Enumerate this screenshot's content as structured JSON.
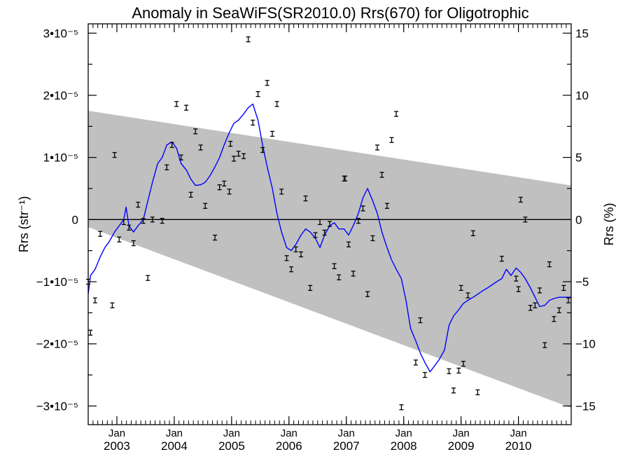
{
  "chart_data": {
    "type": "line",
    "title": "Anomaly in SeaWiFS(SR2010.0) Rrs(670) for Oligotrophic",
    "ylabel_left": "Rrs (str⁻¹)",
    "ylabel_right": "Rrs (%)",
    "xlim": [
      2002.5,
      2010.92
    ],
    "ylim": [
      -3.3e-05,
      3.15e-05
    ],
    "y2lim": [
      -16.5,
      15.75
    ],
    "grid": false,
    "y_ticks": [
      {
        "value": 3e-05,
        "label": "3•10⁻⁵"
      },
      {
        "value": 2e-05,
        "label": "2•10⁻⁵"
      },
      {
        "value": 1e-05,
        "label": "1•10⁻⁵"
      },
      {
        "value": 0,
        "label": "0"
      },
      {
        "value": -1e-05,
        "label": "−1•10⁻⁵"
      },
      {
        "value": -2e-05,
        "label": "−2•10⁻⁵"
      },
      {
        "value": -3e-05,
        "label": "−3•10⁻⁵"
      }
    ],
    "y2_ticks": [
      15,
      10,
      5,
      0,
      -5,
      -10,
      -15
    ],
    "x_ticks": [
      {
        "value": 2003,
        "top": "Jan",
        "bottom": "2003"
      },
      {
        "value": 2004,
        "top": "Jan",
        "bottom": "2004"
      },
      {
        "value": 2005,
        "top": "Jan",
        "bottom": "2005"
      },
      {
        "value": 2006,
        "top": "Jan",
        "bottom": "2006"
      },
      {
        "value": 2007,
        "top": "Jan",
        "bottom": "2007"
      },
      {
        "value": 2008,
        "top": "Jan",
        "bottom": "2008"
      },
      {
        "value": 2009,
        "top": "Jan",
        "bottom": "2009"
      },
      {
        "value": 2010,
        "top": "Jan",
        "bottom": "2010"
      }
    ],
    "uncertainty_band": {
      "color": "#c0c0c0",
      "x": [
        2002.5,
        2010.92
      ],
      "upper": [
        1.75e-05,
        5.5e-06
      ],
      "lower": [
        -1.2e-06,
        -3.03e-05
      ]
    },
    "zero_line": 0,
    "series": [
      {
        "kind": "points",
        "color": "#000000",
        "x": [
          2002.5,
          2002.54,
          2002.62,
          2002.71,
          2002.92,
          2002.96,
          2003.04,
          2003.12,
          2003.21,
          2003.29,
          2003.37,
          2003.46,
          2003.54,
          2003.62,
          2003.79,
          2003.87,
          2003.96,
          2004.04,
          2004.12,
          2004.21,
          2004.29,
          2004.37,
          2004.46,
          2004.54,
          2004.71,
          2004.79,
          2004.87,
          2004.96,
          2004.98,
          2005.04,
          2005.12,
          2005.21,
          2005.29,
          2005.37,
          2005.46,
          2005.54,
          2005.62,
          2005.71,
          2005.79,
          2005.87,
          2005.96,
          2006.04,
          2006.12,
          2006.21,
          2006.29,
          2006.37,
          2006.46,
          2006.54,
          2006.62,
          2006.71,
          2006.79,
          2006.87,
          2006.96,
          2006.98,
          2007.04,
          2007.12,
          2007.21,
          2007.29,
          2007.37,
          2007.46,
          2007.54,
          2007.62,
          2007.71,
          2007.79,
          2007.87,
          2007.96,
          2008.21,
          2008.29,
          2008.37,
          2008.79,
          2008.87,
          2008.96,
          2009.0,
          2009.04,
          2009.12,
          2009.21,
          2009.29,
          2009.71,
          2009.96,
          2010.0,
          2010.04,
          2010.12,
          2010.21,
          2010.29,
          2010.37,
          2010.46,
          2010.54,
          2010.62,
          2010.71,
          2010.79,
          2010.87
        ],
        "values": [
          -1e-05,
          -1.82e-05,
          -1.3e-05,
          -2.3e-06,
          -1.38e-05,
          1.04e-05,
          -3.2e-06,
          -4e-07,
          -1.3e-06,
          -3.8e-06,
          2.4e-06,
          -2e-07,
          -9.4e-06,
          0.0,
          -2e-07,
          8.4e-06,
          1.2e-05,
          1.86e-05,
          1e-05,
          1.8e-05,
          4e-06,
          1.42e-05,
          1.16e-05,
          2.2e-06,
          -2.9e-06,
          5.2e-06,
          5.8e-06,
          4.5e-06,
          1.22e-05,
          9.8e-06,
          1.06e-05,
          1.02e-05,
          2.9e-05,
          1.56e-05,
          2.02e-05,
          1.12e-05,
          2.2e-05,
          1.38e-05,
          1.86e-05,
          4.5e-06,
          -6.2e-06,
          -8e-06,
          -4.8e-06,
          -5.6e-06,
          3.4e-06,
          -1.1e-05,
          -2.5e-06,
          -4e-07,
          -2.1e-06,
          -7e-07,
          -7.5e-06,
          -9.3e-06,
          6.6e-06,
          6.6e-06,
          -4e-06,
          -8.7e-06,
          -2e-07,
          1.8e-06,
          -1.2e-05,
          -3e-06,
          1.16e-05,
          7.2e-06,
          2.2e-06,
          1.28e-05,
          1.7e-05,
          -3.02e-05,
          -2.3e-05,
          -1.62e-05,
          -2.5e-05,
          -2.44e-05,
          -2.75e-05,
          -2.43e-05,
          -1.1e-05,
          -2.32e-05,
          -1.22e-05,
          -2.2e-06,
          -2.78e-05,
          -6.3e-06,
          -9.5e-06,
          -1.12e-05,
          3.2e-06,
          0.0,
          -1.42e-05,
          -1.38e-05,
          -1.14e-05,
          -2.02e-05,
          -7.2e-06,
          -1.6e-05,
          -1.46e-05,
          -1.1e-05,
          -1.3e-05
        ]
      },
      {
        "kind": "line",
        "color": "#0000ff",
        "x": [
          2002.5,
          2002.54,
          2002.62,
          2002.71,
          2002.79,
          2002.87,
          2002.96,
          2003.04,
          2003.12,
          2003.16,
          2003.21,
          2003.29,
          2003.37,
          2003.46,
          2003.54,
          2003.62,
          2003.71,
          2003.79,
          2003.87,
          2003.96,
          2004.04,
          2004.12,
          2004.21,
          2004.29,
          2004.37,
          2004.46,
          2004.54,
          2004.62,
          2004.71,
          2004.79,
          2004.87,
          2004.96,
          2005.04,
          2005.12,
          2005.21,
          2005.29,
          2005.37,
          2005.46,
          2005.54,
          2005.62,
          2005.71,
          2005.79,
          2005.87,
          2005.96,
          2006.04,
          2006.12,
          2006.21,
          2006.29,
          2006.37,
          2006.46,
          2006.54,
          2006.62,
          2006.71,
          2006.79,
          2006.87,
          2006.96,
          2007.04,
          2007.12,
          2007.21,
          2007.29,
          2007.37,
          2007.46,
          2007.54,
          2007.62,
          2007.71,
          2007.79,
          2007.87,
          2007.96,
          2008.04,
          2008.12,
          2008.21,
          2008.29,
          2008.37,
          2008.46,
          2008.54,
          2008.62,
          2008.71,
          2008.79,
          2008.87,
          2008.96,
          2009.04,
          2009.12,
          2009.21,
          2009.29,
          2009.37,
          2009.46,
          2009.54,
          2009.62,
          2009.71,
          2009.79,
          2009.87,
          2009.96,
          2010.04,
          2010.12,
          2010.21,
          2010.29,
          2010.37,
          2010.46,
          2010.54,
          2010.62,
          2010.71,
          2010.79,
          2010.87,
          2010.92
        ],
        "values": [
          -1.2e-05,
          -9e-06,
          -8e-06,
          -6e-06,
          -4.5e-06,
          -3.5e-06,
          -2e-06,
          -1e-06,
          0.0,
          2e-06,
          -1e-06,
          -2e-06,
          -1e-06,
          0.0,
          3e-06,
          6e-06,
          9e-06,
          1e-05,
          1.2e-05,
          1.25e-05,
          1.15e-05,
          9e-06,
          8e-06,
          6.5e-06,
          5.5e-06,
          5.6e-06,
          6e-06,
          7e-06,
          8.5e-06,
          1e-05,
          1.2e-05,
          1.4e-05,
          1.55e-05,
          1.6e-05,
          1.7e-05,
          1.8e-05,
          1.86e-05,
          1.6e-05,
          1.2e-05,
          8.5e-06,
          5e-06,
          1e-06,
          -2e-06,
          -4.5e-06,
          -5e-06,
          -4e-06,
          -2.5e-06,
          -1.5e-06,
          -2e-06,
          -3e-06,
          -4.5e-06,
          -2.5e-06,
          -1e-06,
          -5e-07,
          -1.5e-06,
          -1.5e-06,
          -2.5e-06,
          -1e-06,
          1e-06,
          3.5e-06,
          5e-06,
          3e-06,
          1e-06,
          -2e-06,
          -4.5e-06,
          -6.5e-06,
          -8e-06,
          -9.5e-06,
          -1.3e-05,
          -1.75e-05,
          -1.95e-05,
          -2.15e-05,
          -2.3e-05,
          -2.45e-05,
          -2.35e-05,
          -2.25e-05,
          -2.1e-05,
          -1.7e-05,
          -1.55e-05,
          -1.45e-05,
          -1.35e-05,
          -1.3e-05,
          -1.25e-05,
          -1.2e-05,
          -1.15e-05,
          -1.1e-05,
          -1.05e-05,
          -1e-05,
          -9.5e-06,
          -8e-06,
          -9e-06,
          -7.8e-06,
          -8.5e-06,
          -9.5e-06,
          -1.1e-05,
          -1.25e-05,
          -1.4e-05,
          -1.38e-05,
          -1.3e-05,
          -1.27e-05,
          -1.25e-05,
          -1.25e-05,
          -1.25e-05,
          -1.25e-05
        ]
      }
    ]
  }
}
